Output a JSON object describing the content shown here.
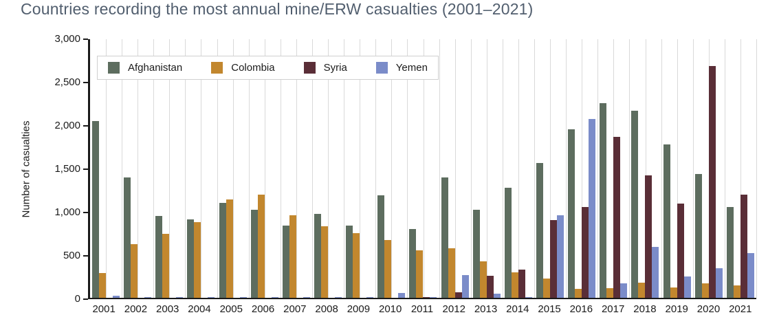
{
  "page": {
    "title": "Countries recording the most annual mine/ERW casualties (2001–2021)"
  },
  "chart_data": {
    "type": "bar",
    "title": "Countries recording the most annual mine/ERW casualties (2001–2021)",
    "xlabel": "",
    "ylabel": "Number of casualties",
    "ylim": [
      0,
      3000
    ],
    "yticks": [
      0,
      500,
      1000,
      1500,
      2000,
      2500,
      3000
    ],
    "grid": "vertical-only",
    "legend_position": "top-left-inside",
    "categories": [
      "2001",
      "2002",
      "2003",
      "2004",
      "2005",
      "2006",
      "2007",
      "2008",
      "2009",
      "2010",
      "2011",
      "2012",
      "2013",
      "2014",
      "2015",
      "2016",
      "2017",
      "2018",
      "2019",
      "2020",
      "2021"
    ],
    "series": [
      {
        "name": "Afghanistan",
        "color": "#5d6d5f",
        "values": [
          2050,
          1400,
          950,
          910,
          1100,
          1025,
          835,
          970,
          840,
          1185,
          795,
          1400,
          1025,
          1280,
          1565,
          1955,
          2255,
          2170,
          1780,
          1435,
          1055
        ]
      },
      {
        "name": "Colombia",
        "color": "#c2872e",
        "values": [
          290,
          620,
          740,
          875,
          1145,
          1195,
          955,
          830,
          750,
          670,
          550,
          575,
          420,
          295,
          220,
          105,
          110,
          175,
          120,
          165,
          145
        ]
      },
      {
        "name": "Syria",
        "color": "#5a2e37",
        "values": [
          0,
          0,
          0,
          0,
          0,
          0,
          0,
          0,
          0,
          0,
          10,
          60,
          255,
          325,
          900,
          1050,
          1865,
          1420,
          1095,
          2690,
          1200
        ]
      },
      {
        "name": "Yemen",
        "color": "#7b8cc9",
        "values": [
          25,
          10,
          5,
          5,
          10,
          10,
          10,
          10,
          5,
          55,
          5,
          260,
          50,
          5,
          960,
          2075,
          165,
          590,
          245,
          340,
          515
        ]
      }
    ],
    "axis_color": "#1a1a1a",
    "gridline_color": "#d9d9d9",
    "title_color": "#515e6e"
  }
}
